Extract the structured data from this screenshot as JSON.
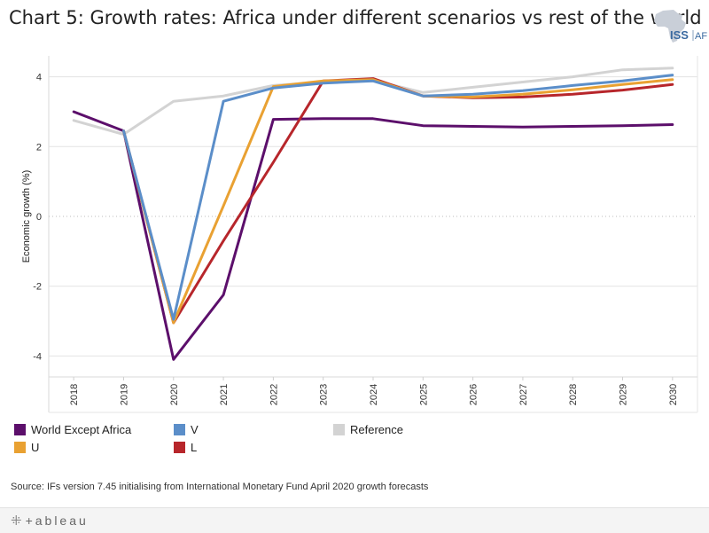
{
  "title": "Chart 5: Growth rates: Africa under different scenarios vs rest of the world",
  "logo": {
    "text_main": "ISS",
    "text_sub": "AFI"
  },
  "source": "Source: IFs version 7.45 initialising from International Monetary Fund April 2020 growth forecasts",
  "footer": {
    "brand": "+ableau",
    "icon": "tableau-logo-icon"
  },
  "colors": {
    "world": "#5c0f6b",
    "v": "#5b8ec9",
    "u": "#e9a132",
    "l": "#b7262b",
    "reference": "#d3d3d3"
  },
  "chart_data": {
    "type": "line",
    "title": "Chart 5: Growth rates: Africa under different scenarios vs rest of the world",
    "xlabel": "",
    "ylabel": "Economic growth (%)",
    "ylim": [
      -4.6,
      4.6
    ],
    "yticks": [
      "4",
      "2",
      "0",
      "-2",
      "-4"
    ],
    "ytick_values": [
      4,
      2,
      0,
      -2,
      -4
    ],
    "grid": true,
    "legend_position": "bottom",
    "x": [
      "2018",
      "2019",
      "2020",
      "2021",
      "2022",
      "2023",
      "2024",
      "2025",
      "2026",
      "2027",
      "2028",
      "2029",
      "2030"
    ],
    "series": [
      {
        "name": "Reference",
        "key": "reference",
        "values": [
          2.75,
          2.35,
          3.3,
          3.45,
          3.75,
          3.85,
          3.9,
          3.55,
          3.7,
          3.85,
          4.0,
          4.2,
          4.25
        ]
      },
      {
        "name": "World Except Africa",
        "key": "world",
        "values": [
          3.0,
          2.45,
          -4.1,
          -2.25,
          2.78,
          2.8,
          2.8,
          2.6,
          2.58,
          2.56,
          2.58,
          2.6,
          2.63
        ]
      },
      {
        "name": "L",
        "key": "l",
        "values": [
          null,
          2.45,
          -3.05,
          -0.7,
          1.55,
          3.88,
          3.95,
          3.45,
          3.4,
          3.42,
          3.5,
          3.62,
          3.78
        ]
      },
      {
        "name": "U",
        "key": "u",
        "values": [
          null,
          2.45,
          -3.05,
          0.3,
          3.72,
          3.88,
          3.92,
          3.45,
          3.42,
          3.5,
          3.63,
          3.78,
          3.92
        ]
      },
      {
        "name": "V",
        "key": "v",
        "values": [
          null,
          2.45,
          -2.95,
          3.3,
          3.68,
          3.82,
          3.88,
          3.45,
          3.5,
          3.6,
          3.75,
          3.88,
          4.05
        ]
      }
    ],
    "legend": [
      {
        "name": "World Except Africa",
        "key": "world"
      },
      {
        "name": "V",
        "key": "v"
      },
      {
        "name": "Reference",
        "key": "reference"
      },
      {
        "name": "U",
        "key": "u"
      },
      {
        "name": "L",
        "key": "l"
      }
    ]
  }
}
